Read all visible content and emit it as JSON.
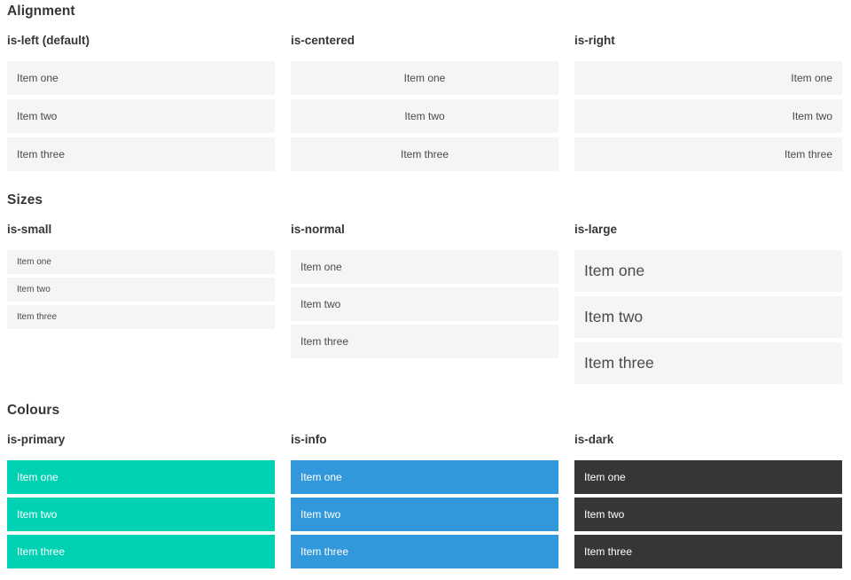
{
  "colors": {
    "primary": "#00d1b2",
    "info": "#3298dc",
    "dark": "#363636",
    "item_background": "#f5f5f5",
    "item_text": "#4a4a4a",
    "heading_text": "#363636",
    "colored_item_text": "#ffffff",
    "page_background": "#ffffff"
  },
  "sections": [
    {
      "title": "Alignment",
      "columns": [
        {
          "heading": "is-left (default)",
          "items": [
            "Item one",
            "Item two",
            "Item three"
          ]
        },
        {
          "heading": "is-centered",
          "items": [
            "Item one",
            "Item two",
            "Item three"
          ]
        },
        {
          "heading": "is-right",
          "items": [
            "Item one",
            "Item two",
            "Item three"
          ]
        }
      ]
    },
    {
      "title": "Sizes",
      "columns": [
        {
          "heading": "is-small",
          "items": [
            "Item one",
            "Item two",
            "Item three"
          ]
        },
        {
          "heading": "is-normal",
          "items": [
            "Item one",
            "Item two",
            "Item three"
          ]
        },
        {
          "heading": "is-large",
          "items": [
            "Item one",
            "Item two",
            "Item three"
          ]
        }
      ]
    },
    {
      "title": "Colours",
      "columns": [
        {
          "heading": "is-primary",
          "items": [
            "Item one",
            "Item two",
            "Item three"
          ]
        },
        {
          "heading": "is-info",
          "items": [
            "Item one",
            "Item two",
            "Item three"
          ]
        },
        {
          "heading": "is-dark",
          "items": [
            "Item one",
            "Item two",
            "Item three"
          ]
        }
      ]
    }
  ]
}
